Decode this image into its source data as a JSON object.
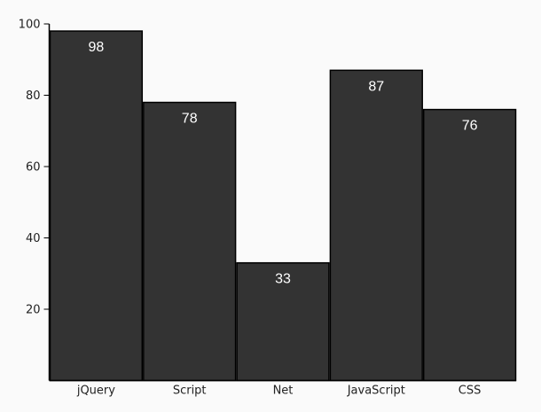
{
  "chart_data": {
    "type": "bar",
    "categories": [
      "jQuery",
      "Script",
      "Net",
      "JavaScript",
      "CSS"
    ],
    "values": [
      98,
      78,
      33,
      87,
      76
    ],
    "value_labels": [
      "98",
      "78",
      "33",
      "87",
      "76"
    ],
    "title": "",
    "xlabel": "",
    "ylabel": "",
    "ylim": [
      0,
      100
    ],
    "yticks": [
      20,
      40,
      60,
      80,
      100
    ],
    "ytick_labels": [
      "20",
      "40",
      "60",
      "80",
      "100"
    ],
    "grid": false,
    "legend": "none",
    "colors": {
      "bar_fill": "#333333",
      "bar_stroke": "#000000",
      "axis": "#000000",
      "value_text": "#ffffff",
      "background": "#fafafa"
    }
  }
}
